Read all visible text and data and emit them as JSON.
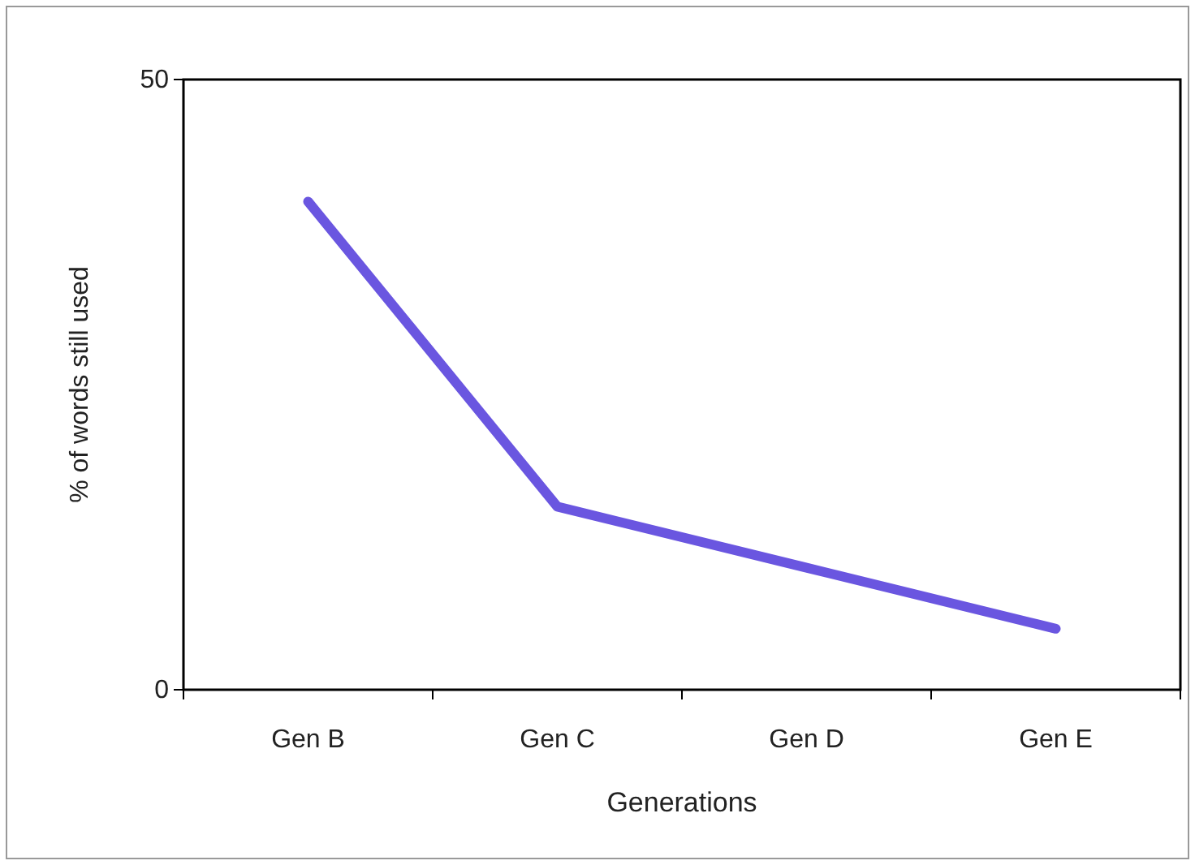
{
  "chart_data": {
    "type": "line",
    "xlabel": "Generations",
    "ylabel": "% of words still used",
    "categories": [
      "Gen B",
      "Gen C",
      "Gen D",
      "Gen E"
    ],
    "series": [
      {
        "color": "#6a56e0",
        "values": [
          40,
          15,
          10,
          5
        ]
      }
    ],
    "ylim": [
      0,
      50
    ],
    "yticks": [
      0,
      50
    ],
    "grid": false,
    "marker": "none",
    "line_style": "solid"
  }
}
